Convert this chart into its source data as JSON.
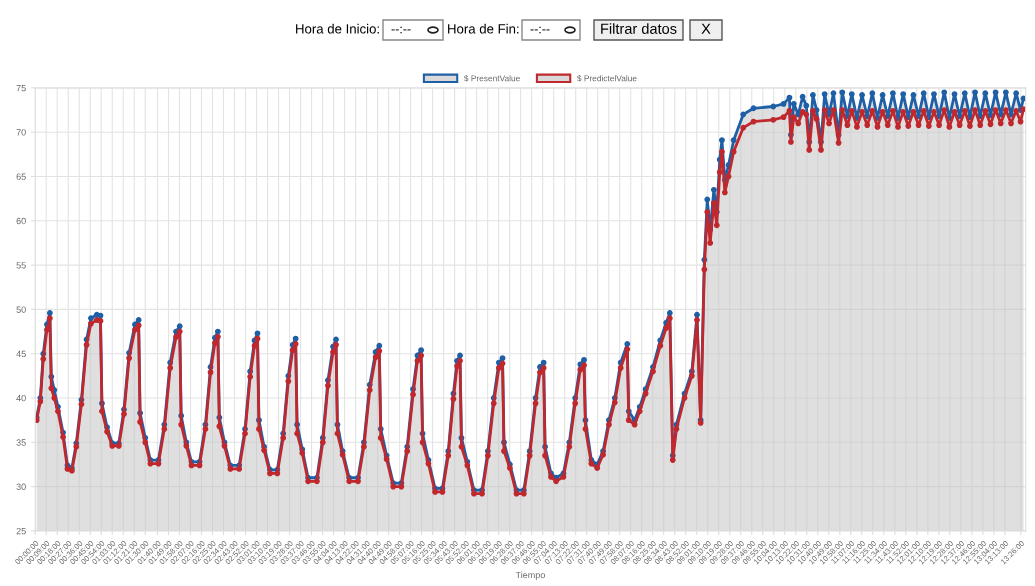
{
  "chart_data": {
    "type": "area",
    "xlabel": "Tiempo",
    "annotations": [
      "Hora de Inicio:",
      "--:--",
      "Hora de Fin:",
      "--:--",
      "Filtrar datos",
      "X"
    ],
    "x": [
      0.02,
      0.07,
      0.11,
      0.16,
      0.2,
      0.22,
      0.26,
      0.31,
      0.38,
      0.44,
      0.5,
      0.56,
      0.63,
      0.7,
      0.76,
      0.84,
      0.89,
      0.91,
      0.98,
      1.05,
      1.14,
      1.21,
      1.28,
      1.36,
      1.41,
      1.43,
      1.5,
      1.57,
      1.68,
      1.76,
      1.84,
      1.92,
      1.97,
      1.99,
      2.06,
      2.13,
      2.24,
      2.32,
      2.39,
      2.45,
      2.49,
      2.51,
      2.58,
      2.66,
      2.78,
      2.86,
      2.93,
      2.99,
      3.03,
      3.05,
      3.12,
      3.2,
      3.3,
      3.38,
      3.45,
      3.51,
      3.55,
      3.57,
      3.64,
      3.72,
      3.84,
      3.92,
      3.99,
      4.06,
      4.1,
      4.12,
      4.19,
      4.28,
      4.4,
      4.48,
      4.56,
      4.64,
      4.69,
      4.71,
      4.79,
      4.88,
      4.99,
      5.07,
      5.15,
      5.21,
      5.26,
      5.28,
      5.36,
      5.45,
      5.55,
      5.63,
      5.7,
      5.75,
      5.79,
      5.81,
      5.89,
      5.98,
      6.09,
      6.17,
      6.25,
      6.32,
      6.37,
      6.39,
      6.47,
      6.56,
      6.66,
      6.74,
      6.82,
      6.88,
      6.93,
      6.95,
      7.03,
      7.1,
      7.2,
      7.28,
      7.36,
      7.43,
      7.48,
      7.5,
      7.58,
      7.66,
      7.74,
      7.82,
      7.9,
      7.98,
      8.07,
      8.09,
      8.17,
      8.24,
      8.32,
      8.42,
      8.52,
      8.6,
      8.65,
      8.69,
      8.74,
      8.85,
      8.95,
      9.02,
      9.07,
      9.12,
      9.16,
      9.2,
      9.25,
      9.29,
      9.33,
      9.36,
      9.4,
      9.45,
      9.52,
      9.65,
      9.79,
      10.06,
      10.2,
      10.28,
      10.3,
      10.34,
      10.4,
      10.46,
      10.51,
      10.55,
      10.6,
      10.65,
      10.71,
      10.76,
      10.82,
      10.88,
      10.95,
      11.0,
      11.07,
      11.13,
      11.2,
      11.27,
      11.34,
      11.41,
      11.48,
      11.55,
      11.62,
      11.69,
      11.76,
      11.83,
      11.9,
      11.97,
      12.04,
      12.11,
      12.18,
      12.25,
      12.32,
      12.39,
      12.46,
      12.53,
      12.6,
      12.67,
      12.74,
      12.81,
      12.88,
      12.95,
      13.02,
      13.09,
      13.16,
      13.23,
      13.3,
      13.37,
      13.43,
      13.47
    ],
    "series": [
      {
        "name": "$ PresentValue",
        "color": "#1f5fa6",
        "values": [
          37.8,
          40.0,
          45.0,
          48.3,
          49.6,
          42.4,
          40.9,
          39.0,
          36.1,
          32.4,
          32.1,
          34.9,
          39.8,
          46.6,
          49.0,
          49.4,
          49.3,
          39.4,
          36.7,
          34.9,
          34.9,
          38.7,
          45.1,
          48.3,
          48.8,
          38.3,
          35.5,
          33.0,
          33.0,
          37.0,
          44.0,
          47.5,
          48.1,
          38.0,
          35.0,
          32.8,
          32.8,
          37.0,
          43.5,
          46.8,
          47.5,
          37.8,
          35.0,
          32.4,
          32.4,
          36.5,
          43.0,
          46.5,
          47.3,
          37.5,
          34.5,
          31.9,
          31.9,
          36.0,
          42.5,
          46.0,
          46.7,
          37.0,
          34.2,
          31.0,
          31.0,
          35.5,
          42.0,
          45.8,
          46.6,
          37.0,
          34.0,
          31.0,
          31.0,
          35.0,
          41.5,
          45.2,
          45.9,
          36.5,
          33.5,
          30.4,
          30.4,
          34.5,
          41.0,
          44.8,
          45.4,
          36.0,
          33.0,
          29.8,
          29.8,
          34.0,
          40.5,
          44.2,
          44.8,
          35.5,
          32.8,
          29.6,
          29.6,
          34.0,
          40.0,
          44.0,
          44.5,
          35.0,
          32.5,
          29.6,
          29.6,
          34.0,
          40.0,
          43.5,
          44.0,
          34.5,
          31.5,
          31.0,
          31.5,
          35.0,
          40.0,
          43.8,
          44.3,
          37.5,
          33.0,
          32.5,
          34.0,
          37.5,
          40.0,
          44.0,
          46.1,
          38.5,
          37.5,
          39.0,
          41.0,
          43.5,
          46.5,
          48.5,
          49.6,
          33.5,
          37.0,
          40.5,
          43.0,
          49.4,
          37.5,
          55.6,
          62.4,
          59.0,
          63.5,
          61.0,
          66.9,
          69.1,
          64.6,
          66.3,
          69.1,
          72.0,
          72.7,
          72.9,
          73.2,
          73.9,
          69.7,
          73.2,
          72.0,
          74.0,
          73.0,
          68.9,
          74.2,
          72.5,
          68.9,
          74.3,
          72.0,
          74.4,
          69.7,
          74.5,
          71.8,
          74.3,
          71.6,
          74.2,
          71.8,
          74.4,
          71.6,
          74.2,
          71.8,
          74.4,
          71.6,
          74.3,
          71.7,
          74.2,
          71.8,
          74.4,
          71.7,
          74.3,
          71.8,
          74.5,
          71.6,
          74.3,
          71.8,
          74.4,
          71.7,
          74.5,
          71.8,
          74.4,
          71.9,
          74.5,
          72.0,
          74.5,
          72.0,
          74.4,
          72.5,
          73.8
        ]
      },
      {
        "name": "$ PredictelValue",
        "type": "line",
        "color": "#c0282d",
        "values": [
          37.5,
          39.6,
          44.4,
          47.7,
          49.0,
          41.1,
          40.0,
          38.5,
          35.6,
          32.0,
          31.8,
          34.5,
          39.3,
          46.0,
          48.4,
          48.8,
          48.7,
          38.5,
          36.2,
          34.6,
          34.6,
          38.2,
          44.5,
          47.7,
          48.2,
          37.3,
          35.0,
          32.6,
          32.6,
          36.5,
          43.4,
          46.9,
          47.5,
          37.0,
          34.6,
          32.4,
          32.4,
          36.5,
          42.9,
          46.2,
          46.9,
          36.8,
          34.6,
          32.0,
          32.0,
          36.0,
          42.4,
          45.9,
          46.7,
          36.5,
          34.1,
          31.5,
          31.5,
          35.5,
          41.9,
          45.4,
          46.1,
          36.0,
          33.8,
          30.6,
          30.6,
          35.0,
          41.4,
          45.2,
          46.0,
          36.0,
          33.6,
          30.6,
          30.6,
          34.5,
          40.9,
          44.6,
          45.3,
          35.5,
          33.1,
          30.0,
          30.0,
          34.0,
          40.4,
          44.2,
          44.8,
          35.0,
          32.6,
          29.4,
          29.4,
          33.5,
          39.9,
          43.6,
          44.2,
          34.5,
          32.4,
          29.2,
          29.2,
          33.5,
          39.4,
          43.4,
          43.9,
          34.0,
          32.1,
          29.2,
          29.2,
          33.5,
          39.4,
          42.9,
          43.4,
          33.5,
          31.1,
          30.6,
          31.1,
          34.5,
          39.4,
          43.2,
          43.7,
          36.5,
          32.6,
          32.1,
          33.6,
          37.0,
          39.5,
          43.4,
          45.5,
          37.5,
          37.0,
          38.5,
          40.5,
          43.0,
          45.9,
          47.9,
          49.0,
          33.0,
          36.5,
          40.0,
          42.5,
          48.8,
          37.2,
          54.5,
          61.0,
          57.5,
          62.0,
          59.5,
          65.5,
          67.8,
          63.2,
          65.0,
          67.8,
          70.5,
          71.2,
          71.4,
          71.7,
          72.4,
          68.9,
          71.7,
          71.0,
          72.3,
          72.0,
          68.0,
          72.4,
          71.5,
          68.0,
          72.5,
          71.0,
          72.5,
          68.8,
          72.5,
          70.8,
          72.4,
          70.6,
          72.3,
          70.8,
          72.4,
          70.6,
          72.3,
          70.8,
          72.4,
          70.6,
          72.3,
          70.7,
          72.3,
          70.8,
          72.4,
          70.7,
          72.3,
          70.8,
          72.5,
          70.6,
          72.3,
          70.8,
          72.4,
          70.7,
          72.5,
          70.8,
          72.4,
          70.9,
          72.5,
          71.0,
          72.5,
          71.0,
          72.4,
          71.2,
          72.6
        ]
      }
    ],
    "xlim": [
      0,
      13.5
    ],
    "xticks": [
      {
        "value": 0,
        "label": "00:00:00"
      },
      {
        "value": 0.15,
        "label": "00:09:00"
      },
      {
        "value": 0.3,
        "label": "00:18:00"
      },
      {
        "value": 0.45,
        "label": "00:27:00"
      },
      {
        "value": 0.6,
        "label": "00:36:00"
      },
      {
        "value": 0.75,
        "label": "00:45:00"
      },
      {
        "value": 0.9,
        "label": "00:54:00"
      },
      {
        "value": 1.05,
        "label": "01:03:00"
      },
      {
        "value": 1.2,
        "label": "01:12:00"
      },
      {
        "value": 1.35,
        "label": "01:21:00"
      },
      {
        "value": 1.5,
        "label": "01:30:00"
      },
      {
        "value": 1.6667,
        "label": "01:40:00"
      },
      {
        "value": 1.8167,
        "label": "01:49:00"
      },
      {
        "value": 1.9667,
        "label": "01:58:00"
      },
      {
        "value": 2.1167,
        "label": "02:07:00"
      },
      {
        "value": 2.2667,
        "label": "02:16:00"
      },
      {
        "value": 2.4167,
        "label": "02:25:00"
      },
      {
        "value": 2.5667,
        "label": "02:34:00"
      },
      {
        "value": 2.7167,
        "label": "02:43:00"
      },
      {
        "value": 2.8667,
        "label": "02:52:00"
      },
      {
        "value": 3.0167,
        "label": "03:01:00"
      },
      {
        "value": 3.1667,
        "label": "03:10:00"
      },
      {
        "value": 3.3167,
        "label": "03:19:00"
      },
      {
        "value": 3.4667,
        "label": "03:28:00"
      },
      {
        "value": 3.6167,
        "label": "03:37:00"
      },
      {
        "value": 3.7667,
        "label": "03:46:00"
      },
      {
        "value": 3.9167,
        "label": "03:55:00"
      },
      {
        "value": 4.0667,
        "label": "04:04:00"
      },
      {
        "value": 4.2167,
        "label": "04:13:00"
      },
      {
        "value": 4.3667,
        "label": "04:22:00"
      },
      {
        "value": 4.5167,
        "label": "04:31:00"
      },
      {
        "value": 4.6667,
        "label": "04:40:00"
      },
      {
        "value": 4.8167,
        "label": "04:49:00"
      },
      {
        "value": 4.9667,
        "label": "04:58:00"
      },
      {
        "value": 5.1167,
        "label": "05:07:00"
      },
      {
        "value": 5.2667,
        "label": "05:16:00"
      },
      {
        "value": 5.4167,
        "label": "05:25:00"
      },
      {
        "value": 5.5667,
        "label": "05:34:00"
      },
      {
        "value": 5.7167,
        "label": "05:43:00"
      },
      {
        "value": 5.8667,
        "label": "05:52:00"
      },
      {
        "value": 6.0167,
        "label": "06:01:00"
      },
      {
        "value": 6.1667,
        "label": "06:10:00"
      },
      {
        "value": 6.3167,
        "label": "06:19:00"
      },
      {
        "value": 6.4667,
        "label": "06:28:00"
      },
      {
        "value": 6.6167,
        "label": "06:37:00"
      },
      {
        "value": 6.7667,
        "label": "06:46:00"
      },
      {
        "value": 6.9167,
        "label": "06:55:00"
      },
      {
        "value": 7.0667,
        "label": "07:04:00"
      },
      {
        "value": 7.2167,
        "label": "07:13:00"
      },
      {
        "value": 7.3667,
        "label": "07:22:00"
      },
      {
        "value": 7.5167,
        "label": "07:31:00"
      },
      {
        "value": 7.6667,
        "label": "07:40:00"
      },
      {
        "value": 7.8167,
        "label": "07:49:00"
      },
      {
        "value": 7.9667,
        "label": "07:58:00"
      },
      {
        "value": 8.1167,
        "label": "08:07:00"
      },
      {
        "value": 8.2667,
        "label": "08:16:00"
      },
      {
        "value": 8.4167,
        "label": "08:25:00"
      },
      {
        "value": 8.5667,
        "label": "08:34:00"
      },
      {
        "value": 8.7167,
        "label": "08:43:00"
      },
      {
        "value": 8.8667,
        "label": "08:52:00"
      },
      {
        "value": 9.0167,
        "label": "09:01:00"
      },
      {
        "value": 9.1667,
        "label": "09:10:00"
      },
      {
        "value": 9.3167,
        "label": "09:19:00"
      },
      {
        "value": 9.4667,
        "label": "09:28:00"
      },
      {
        "value": 9.6167,
        "label": "09:37:00"
      },
      {
        "value": 9.7667,
        "label": "09:46:00"
      },
      {
        "value": 9.9167,
        "label": "09:55:00"
      },
      {
        "value": 10.0667,
        "label": "10:04:00"
      },
      {
        "value": 10.2167,
        "label": "10:13:00"
      },
      {
        "value": 10.3667,
        "label": "10:22:00"
      },
      {
        "value": 10.5167,
        "label": "10:31:00"
      },
      {
        "value": 10.6667,
        "label": "10:40:00"
      },
      {
        "value": 10.8167,
        "label": "10:49:00"
      },
      {
        "value": 10.9667,
        "label": "10:58:00"
      },
      {
        "value": 11.1167,
        "label": "11:07:00"
      },
      {
        "value": 11.2667,
        "label": "11:16:00"
      },
      {
        "value": 11.4167,
        "label": "11:25:00"
      },
      {
        "value": 11.5667,
        "label": "11:34:00"
      },
      {
        "value": 11.7167,
        "label": "11:43:00"
      },
      {
        "value": 11.8667,
        "label": "11:52:00"
      },
      {
        "value": 12.0167,
        "label": "12:01:00"
      },
      {
        "value": 12.1667,
        "label": "12:10:00"
      },
      {
        "value": 12.3167,
        "label": "12:19:00"
      },
      {
        "value": 12.4667,
        "label": "12:28:00"
      },
      {
        "value": 12.6167,
        "label": "12:37:00"
      },
      {
        "value": 12.7667,
        "label": "12:46:00"
      },
      {
        "value": 12.9167,
        "label": "12:55:00"
      },
      {
        "value": 13.0667,
        "label": "13:04:00"
      },
      {
        "value": 13.2167,
        "label": "13:13:00"
      },
      {
        "value": 13.4333,
        "label": "13:26:00"
      }
    ],
    "ylim": [
      25,
      75
    ],
    "yticks": [
      25,
      30,
      35,
      40,
      45,
      50,
      55,
      60,
      65,
      70,
      75
    ],
    "grid": true,
    "legend": "top",
    "marker": "circle",
    "line_style": "solid"
  }
}
